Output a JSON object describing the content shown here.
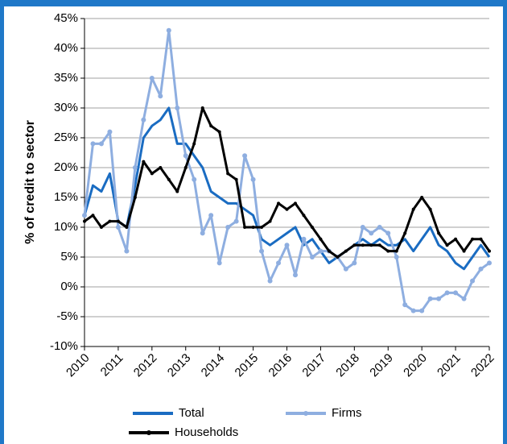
{
  "chart_data": {
    "type": "line",
    "y_label": "% of credit to sector",
    "x": [
      2010,
      2010.25,
      2010.5,
      2010.75,
      2011,
      2011.25,
      2011.5,
      2011.75,
      2012,
      2012.25,
      2012.5,
      2012.75,
      2013,
      2013.25,
      2013.5,
      2013.75,
      2014,
      2014.25,
      2014.5,
      2014.75,
      2015,
      2015.25,
      2015.5,
      2015.75,
      2016,
      2016.25,
      2016.5,
      2016.75,
      2017,
      2017.25,
      2017.5,
      2017.75,
      2018,
      2018.25,
      2018.5,
      2018.75,
      2019,
      2019.25,
      2019.5,
      2019.75,
      2020,
      2020.25,
      2020.5,
      2020.75,
      2021,
      2021.25,
      2021.5,
      2021.75,
      2022
    ],
    "series": [
      {
        "name": "Total",
        "color": "#1a6cc2",
        "marker": false,
        "values": [
          12,
          17,
          16,
          19,
          11,
          10,
          17,
          25,
          27,
          28,
          30,
          24,
          24,
          22,
          20,
          16,
          15,
          14,
          14,
          13,
          12,
          8,
          7,
          8,
          9,
          10,
          7,
          8,
          6,
          4,
          5,
          6,
          7,
          8,
          7,
          8,
          7,
          7,
          8,
          6,
          8,
          10,
          7,
          6,
          4,
          3,
          5,
          7,
          5
        ]
      },
      {
        "name": "Firms",
        "color": "#8eaee0",
        "marker": true,
        "values": [
          12,
          24,
          24,
          26,
          10,
          6,
          20,
          28,
          35,
          32,
          43,
          30,
          22,
          18,
          9,
          12,
          4,
          10,
          11,
          22,
          18,
          6,
          1,
          4,
          7,
          2,
          8,
          5,
          6,
          6,
          5,
          3,
          4,
          10,
          9,
          10,
          9,
          5,
          -3,
          -4,
          -4,
          -2,
          -2,
          -1,
          -1,
          -2,
          1,
          3,
          4
        ]
      },
      {
        "name": "Households",
        "color": "#000000",
        "marker": true,
        "values": [
          11,
          12,
          10,
          11,
          11,
          10,
          15,
          21,
          19,
          20,
          18,
          16,
          20,
          24,
          30,
          27,
          26,
          19,
          18,
          10,
          10,
          10,
          11,
          14,
          13,
          14,
          12,
          10,
          8,
          6,
          5,
          6,
          7,
          7,
          7,
          7,
          6,
          6,
          9,
          13,
          15,
          13,
          9,
          7,
          8,
          6,
          8,
          8,
          6
        ]
      }
    ],
    "xlim": [
      2010,
      2022
    ],
    "xticks": [
      2010,
      2011,
      2012,
      2013,
      2014,
      2015,
      2016,
      2017,
      2018,
      2019,
      2020,
      2021,
      2022
    ],
    "ylim": [
      -10,
      45
    ],
    "yticks": [
      {
        "value": -10,
        "label": "-10%"
      },
      {
        "value": -5,
        "label": "-5%"
      },
      {
        "value": 0,
        "label": "0%"
      },
      {
        "value": 5,
        "label": "5%"
      },
      {
        "value": 10,
        "label": "10%"
      },
      {
        "value": 15,
        "label": "15%"
      },
      {
        "value": 20,
        "label": "20%"
      },
      {
        "value": 25,
        "label": "25%"
      },
      {
        "value": 30,
        "label": "30%"
      },
      {
        "value": 35,
        "label": "35%"
      },
      {
        "value": 40,
        "label": "40%"
      },
      {
        "value": 45,
        "label": "45%"
      }
    ],
    "grid": true
  }
}
